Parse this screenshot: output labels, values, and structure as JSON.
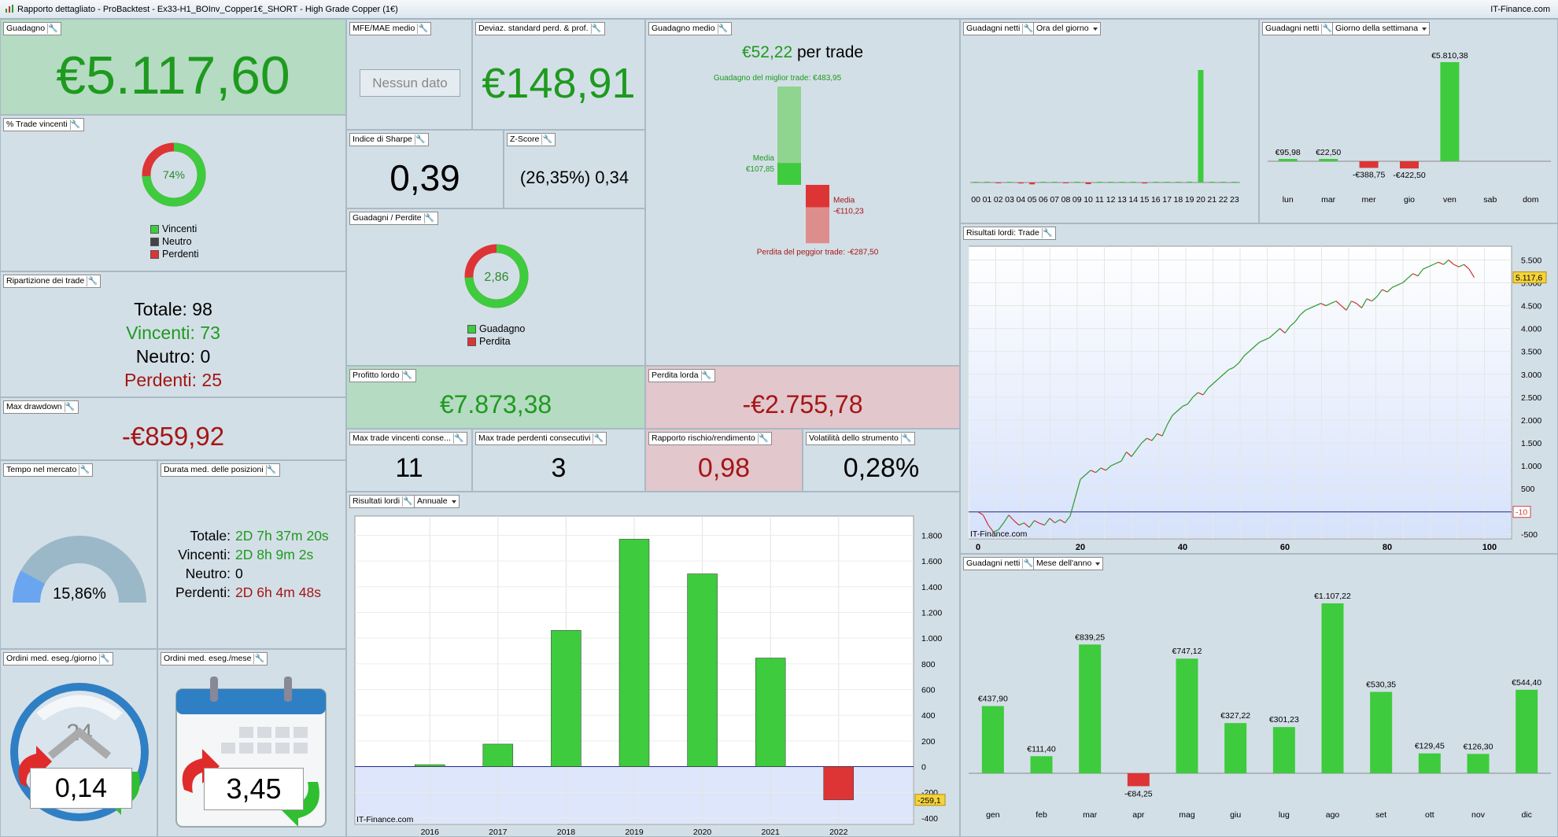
{
  "window": {
    "title": "Rapporto dettagliato - ProBacktest - Ex33-H1_BOInv_Copper1€_SHORT - High Grade Copper (1€)",
    "brand": "IT-Finance.com"
  },
  "gain": {
    "label": "Guadagno",
    "value": "€5.117,60"
  },
  "win_pct": {
    "label": "% Trade vincenti",
    "value": "74%",
    "fraction": 0.74,
    "legend": [
      "Vincenti",
      "Neutro",
      "Perdenti"
    ]
  },
  "breakdown": {
    "label": "Ripartizione dei trade",
    "total": "Totale: 98",
    "winners": "Vincenti: 73",
    "neutral": "Neutro: 0",
    "losers": "Perdenti: 25"
  },
  "max_dd": {
    "label": "Max drawdown",
    "value": "-€859,92"
  },
  "time_market": {
    "label": "Tempo nel mercato",
    "value": "15,86%",
    "fraction": 0.1586
  },
  "avg_duration": {
    "label": "Durata med. delle posizioni",
    "rows": [
      {
        "k": "Totale:",
        "v": "2D 7h 37m 20s"
      },
      {
        "k": "Vincenti:",
        "v": "2D 8h 9m 2s"
      },
      {
        "k": "Neutro:",
        "v": "0"
      },
      {
        "k": "Perdenti:",
        "v": "2D 6h 4m 48s"
      }
    ]
  },
  "orders_day": {
    "label": "Ordini med. eseg./giorno",
    "value": "0,14",
    "clock_number": "24"
  },
  "orders_month": {
    "label": "Ordini med. eseg./mese",
    "value": "3,45"
  },
  "mfe": {
    "label": "MFE/MAE medio",
    "value": "Nessun dato"
  },
  "stddev": {
    "label": "Deviaz. standard perd. & prof.",
    "value": "€148,91"
  },
  "sharpe": {
    "label": "Indice di Sharpe",
    "value": "0,39"
  },
  "zscore": {
    "label": "Z-Score",
    "value": "(26,35%) 0,34"
  },
  "gain_loss": {
    "label": "Guadagni / Perdite",
    "value": "2,86",
    "legend": [
      "Guadagno",
      "Perdita"
    ]
  },
  "avg_gain": {
    "label": "Guadagno medio",
    "value": "€52,22",
    "suffix": " per trade",
    "best": "Guadagno del miglior trade: €483,95",
    "avg_win_label": "Media",
    "avg_win": "€107,85",
    "avg_loss_label": "Media",
    "avg_loss": "-€110,23",
    "worst": "Perdita del peggior trade: -€287,50",
    "best_value": 483.95,
    "avg_win_value": 107.85,
    "avg_loss_value": -110.23,
    "worst_value": -287.5
  },
  "gross_profit": {
    "label": "Profitto lordo",
    "value": "€7.873,38"
  },
  "gross_loss": {
    "label": "Perdita lorda",
    "value": "-€2.755,78"
  },
  "max_consec_win": {
    "label": "Max trade vincenti conse...",
    "value": "11"
  },
  "max_consec_loss": {
    "label": "Max trade perdenti consecutivi",
    "value": "3"
  },
  "risk_reward": {
    "label": "Rapporto rischio/rendimento",
    "value": "0,98"
  },
  "volatility": {
    "label": "Volatilità dello strumento",
    "value": "0,28%"
  },
  "gross_yearly": {
    "label": "Risultati lordi",
    "dropdown": "Annuale",
    "watermark": "IT-Finance.com",
    "last_tag": "-259,1"
  },
  "hour_panel": {
    "label": "Guadagni netti",
    "dropdown": "Ora del giorno"
  },
  "dow_panel": {
    "label": "Guadagni netti",
    "dropdown": "Giorno della settimana"
  },
  "trade_panel": {
    "label": "Risultati lordi: Trade",
    "watermark": "IT-Finance.com",
    "last_tag": "5.117,6",
    "zero_tag": "-10"
  },
  "month_panel": {
    "label": "Guadagni netti",
    "dropdown": "Mese dell'anno"
  },
  "chart_data": [
    {
      "id": "yearly",
      "type": "bar",
      "categories": [
        "2016",
        "2017",
        "2018",
        "2019",
        "2020",
        "2021",
        "2022"
      ],
      "values": [
        15,
        175,
        1060,
        1770,
        1500,
        845,
        -259.1
      ],
      "ylim": [
        -450,
        1950
      ],
      "yticks": [
        -400,
        -200,
        0,
        200,
        400,
        600,
        800,
        1000,
        1200,
        1400,
        1600,
        1800
      ],
      "ytick_labels": [
        "-400",
        "-200",
        "0",
        "200",
        "400",
        "600",
        "800",
        "1.000",
        "1.200",
        "1.400",
        "1.600",
        "1.800"
      ],
      "grid": true
    },
    {
      "id": "hour",
      "type": "bar",
      "categories": [
        "00",
        "01",
        "02",
        "03",
        "04",
        "05",
        "06",
        "07",
        "08",
        "09",
        "10",
        "11",
        "12",
        "13",
        "14",
        "15",
        "16",
        "17",
        "18",
        "19",
        "20",
        "21",
        "22",
        "23"
      ],
      "values": [
        10,
        0,
        -30,
        10,
        -40,
        -80,
        15,
        10,
        -30,
        10,
        -70,
        0,
        10,
        15,
        30,
        -40,
        15,
        20,
        20,
        40,
        4900,
        10,
        0,
        0
      ]
    },
    {
      "id": "weekday",
      "type": "bar",
      "categories": [
        "lun",
        "mar",
        "mer",
        "gio",
        "ven",
        "sab",
        "dom"
      ],
      "values": [
        95.98,
        22.5,
        -388.75,
        -422.5,
        5810.38,
        0,
        0
      ],
      "value_labels": [
        "€95,98",
        "€22,50",
        "-€388,75",
        "-€422,50",
        "€5.810,38",
        "",
        ""
      ]
    },
    {
      "id": "equity",
      "type": "line",
      "x": [
        0,
        1,
        2,
        3,
        4,
        5,
        6,
        7,
        8,
        9,
        10,
        11,
        12,
        13,
        14,
        15,
        16,
        17,
        18,
        19,
        20,
        21,
        22,
        23,
        24,
        25,
        26,
        27,
        28,
        29,
        30,
        31,
        32,
        33,
        34,
        35,
        36,
        37,
        38,
        39,
        40,
        41,
        42,
        43,
        44,
        45,
        46,
        47,
        48,
        49,
        50,
        51,
        52,
        53,
        54,
        55,
        56,
        57,
        58,
        59,
        60,
        61,
        62,
        63,
        64,
        65,
        66,
        67,
        68,
        69,
        70,
        71,
        72,
        73,
        74,
        75,
        76,
        77,
        78,
        79,
        80,
        81,
        82,
        83,
        84,
        85,
        86,
        87,
        88,
        89,
        90,
        91,
        92,
        93,
        94,
        95,
        96,
        97
      ],
      "y": [
        -10,
        -80,
        -300,
        -450,
        -400,
        -250,
        -80,
        -200,
        -300,
        -250,
        -350,
        -200,
        -260,
        -300,
        -150,
        -250,
        -180,
        -250,
        -100,
        300,
        700,
        800,
        900,
        850,
        950,
        900,
        1000,
        1050,
        1100,
        1300,
        1200,
        1350,
        1500,
        1600,
        1550,
        1700,
        1650,
        1900,
        2100,
        2200,
        2300,
        2350,
        2500,
        2600,
        2550,
        2700,
        2800,
        2900,
        3000,
        3100,
        3150,
        3250,
        3400,
        3500,
        3600,
        3700,
        3750,
        3800,
        3900,
        4000,
        3900,
        4050,
        4150,
        4300,
        4400,
        4450,
        4500,
        4550,
        4500,
        4550,
        4600,
        4500,
        4400,
        4600,
        4550,
        4450,
        4650,
        4600,
        4700,
        4850,
        4800,
        4900,
        4950,
        5000,
        5100,
        5200,
        5150,
        5300,
        5350,
        5400,
        5450,
        5400,
        5500,
        5400,
        5350,
        5400,
        5300,
        5117.6
      ],
      "xlim": [
        0,
        100
      ],
      "ylim": [
        -600,
        5800
      ],
      "xticks": [
        0,
        20,
        40,
        60,
        80,
        100
      ],
      "yticks": [
        -500,
        0,
        500,
        1000,
        1500,
        2000,
        2500,
        3000,
        3500,
        4000,
        4500,
        5000,
        5500
      ],
      "ytick_labels": [
        "-500",
        "0",
        "500",
        "1.000",
        "1.500",
        "2.000",
        "2.500",
        "3.000",
        "3.500",
        "4.000",
        "4.500",
        "5.000",
        "5.500"
      ],
      "grid": true
    },
    {
      "id": "month",
      "type": "bar",
      "categories": [
        "gen",
        "feb",
        "mar",
        "apr",
        "mag",
        "giu",
        "lug",
        "ago",
        "set",
        "ott",
        "nov",
        "dic"
      ],
      "values": [
        437.9,
        111.4,
        839.25,
        -84.25,
        747.12,
        327.22,
        301.23,
        1107.22,
        530.35,
        129.45,
        126.3,
        544.4
      ],
      "value_labels": [
        "€437,90",
        "€111,40",
        "€839,25",
        "-€84,25",
        "€747,12",
        "€327,22",
        "€301,23",
        "€1.107,22",
        "€530,35",
        "€129,45",
        "€126,30",
        "€544,40"
      ]
    }
  ],
  "colors": {
    "green": "#3ecb3e",
    "red": "#dd3535",
    "light_green": "#8fd48f",
    "light_red": "#de8d8d"
  }
}
